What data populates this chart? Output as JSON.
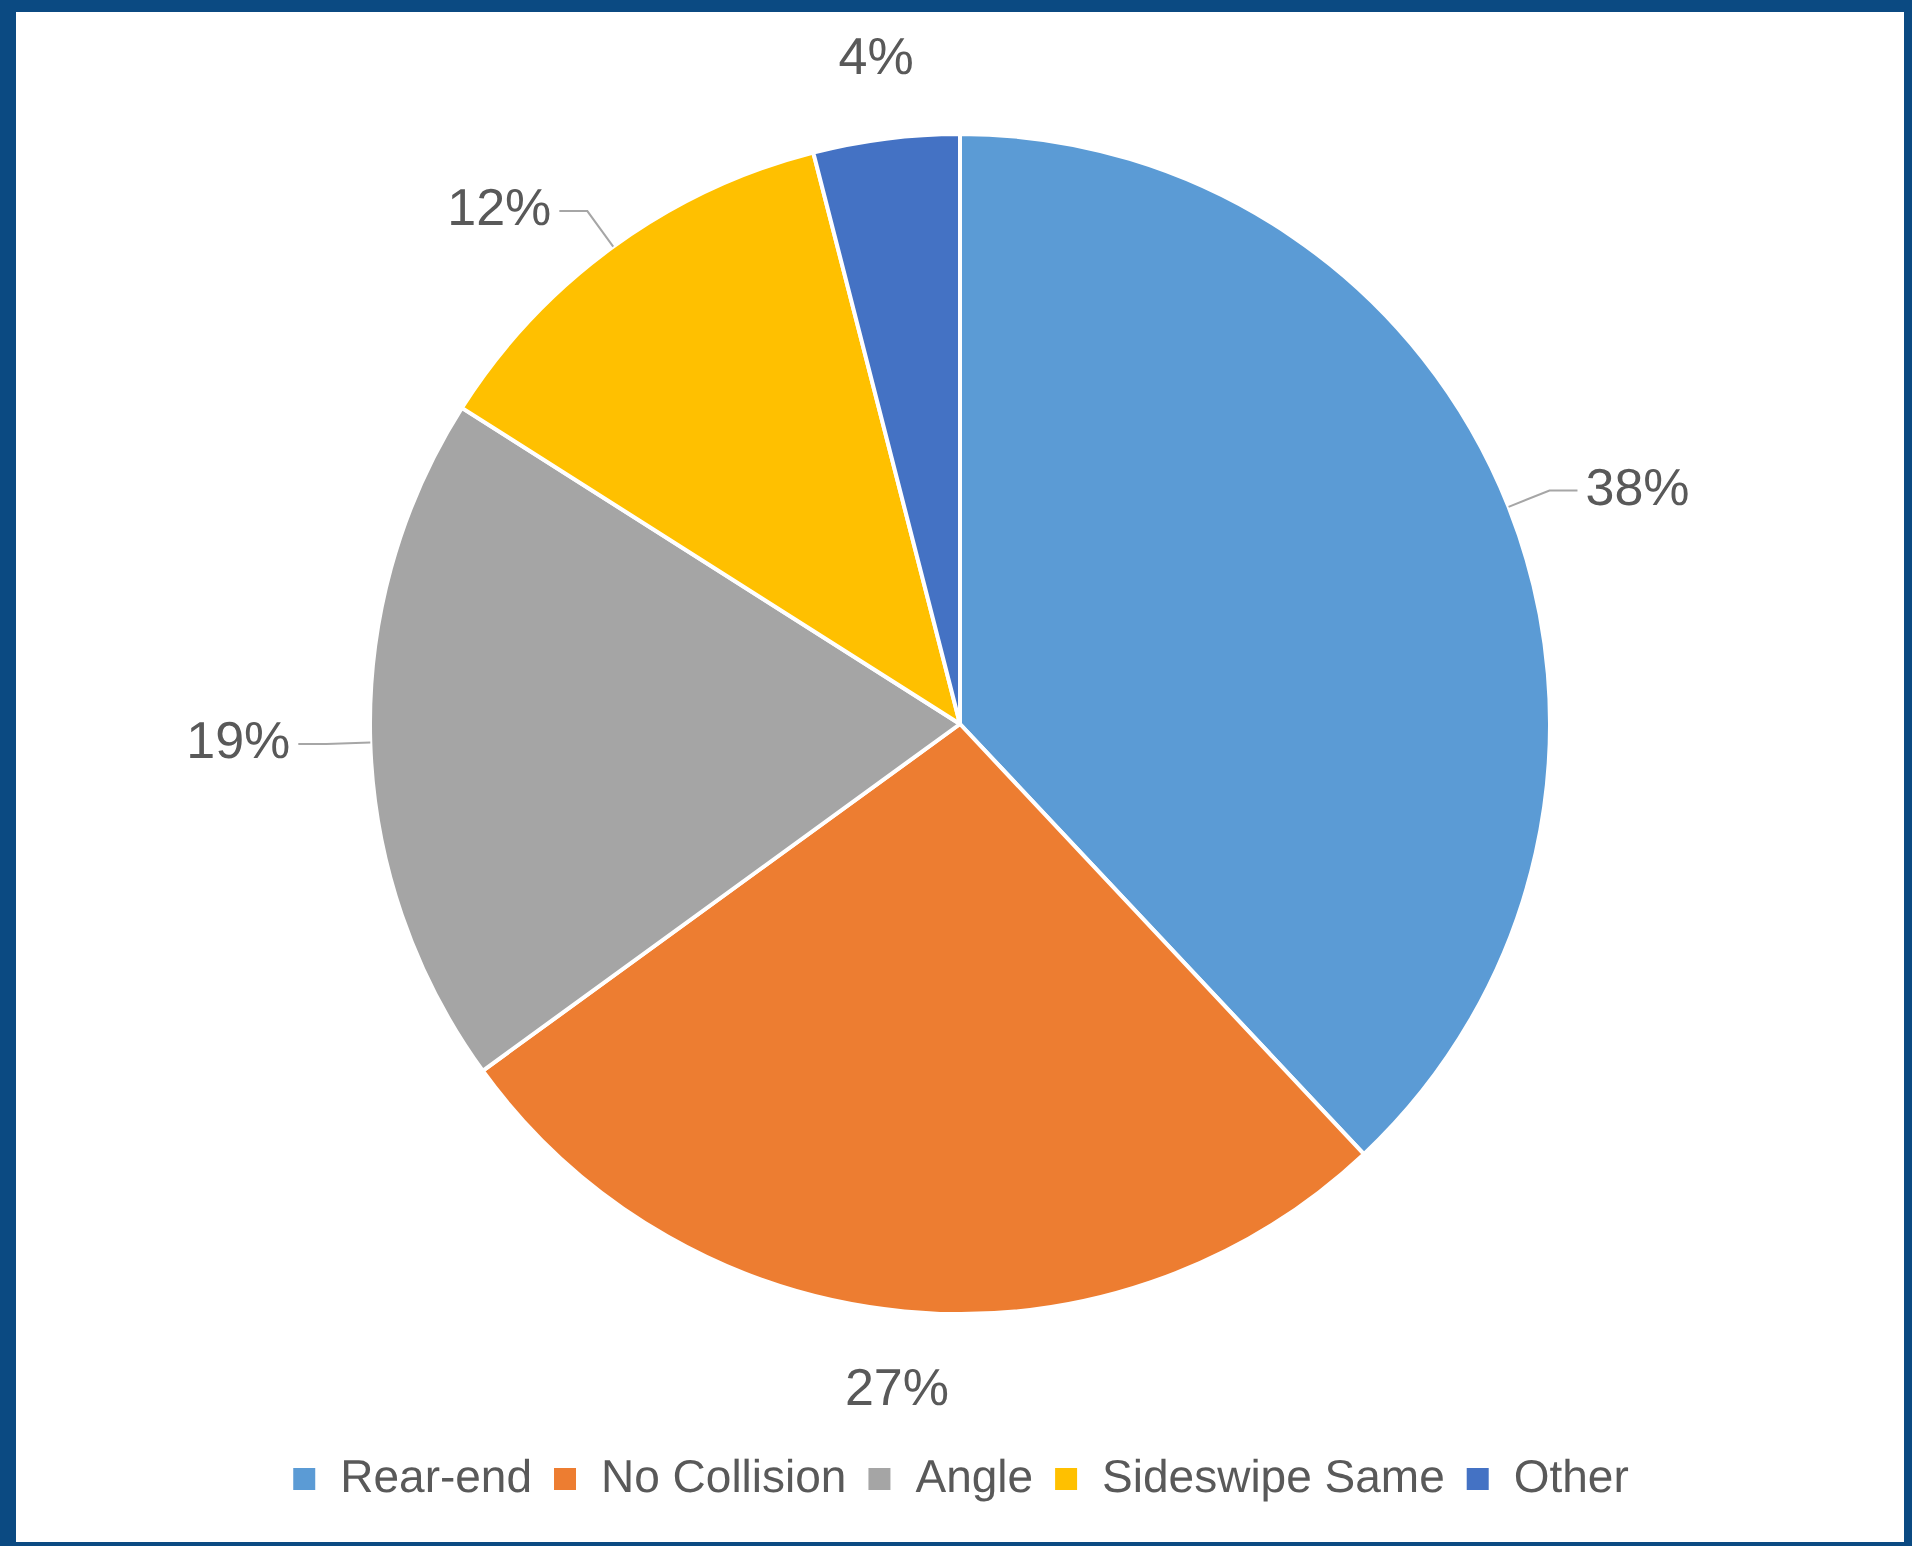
{
  "chart_data": {
    "type": "pie",
    "categories": [
      "Rear-end",
      "No Collision",
      "Angle",
      "Sideswipe Same",
      "Other"
    ],
    "values": [
      38,
      27,
      19,
      12,
      4
    ],
    "colors": [
      "#5b9bd5",
      "#ed7d31",
      "#a5a5a5",
      "#ffc000",
      "#4472c4"
    ],
    "value_labels": [
      "38%",
      "27%",
      "19%",
      "12%",
      "4%"
    ],
    "legend": "bottom"
  }
}
